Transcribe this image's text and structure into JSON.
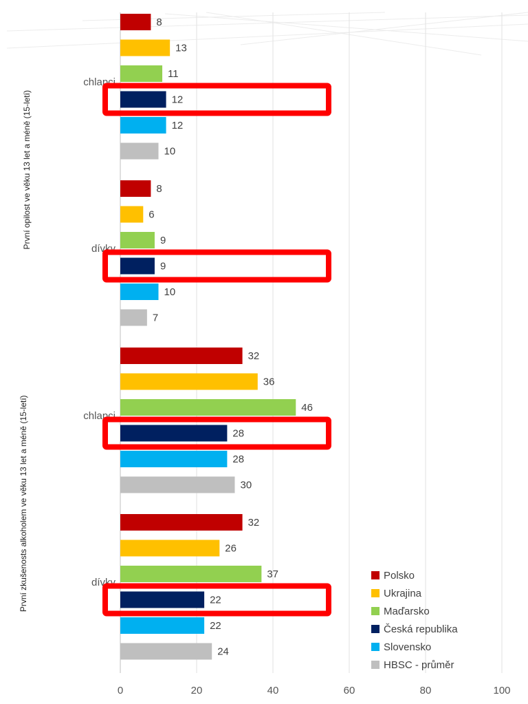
{
  "chart_data": {
    "type": "bar",
    "orientation": "horizontal",
    "xlim": [
      0,
      100
    ],
    "xticks": [
      0,
      20,
      40,
      60,
      80,
      100
    ],
    "grid": true,
    "legend_position": "bottom-right",
    "groups": [
      {
        "label": "První opilost ve věku 13 let a méně (15-letí)",
        "subgroups": [
          {
            "label": "chlapci",
            "values": [
              8,
              13,
              11,
              12,
              12,
              10
            ]
          },
          {
            "label": "dívky",
            "values": [
              8,
              6,
              9,
              9,
              10,
              7
            ]
          }
        ]
      },
      {
        "label": "První zkušenosts alkoholem ve věku 13 let a méně (15-letí)",
        "subgroups": [
          {
            "label": "chlapci",
            "values": [
              32,
              36,
              46,
              28,
              28,
              30
            ]
          },
          {
            "label": "dívky",
            "values": [
              32,
              26,
              37,
              22,
              22,
              24
            ]
          }
        ]
      }
    ],
    "series": [
      {
        "name": "Polsko",
        "color": "#C00000"
      },
      {
        "name": "Ukrajina",
        "color": "#FFC000"
      },
      {
        "name": "Maďarsko",
        "color": "#92D050"
      },
      {
        "name": "Česká republika",
        "color": "#002060"
      },
      {
        "name": "Slovensko",
        "color": "#00B0F0"
      },
      {
        "name": "HBSC - průměr",
        "color": "#BFBFBF"
      }
    ],
    "highlighted_series": "Česká republika",
    "highlight_color": "#FF0000"
  }
}
